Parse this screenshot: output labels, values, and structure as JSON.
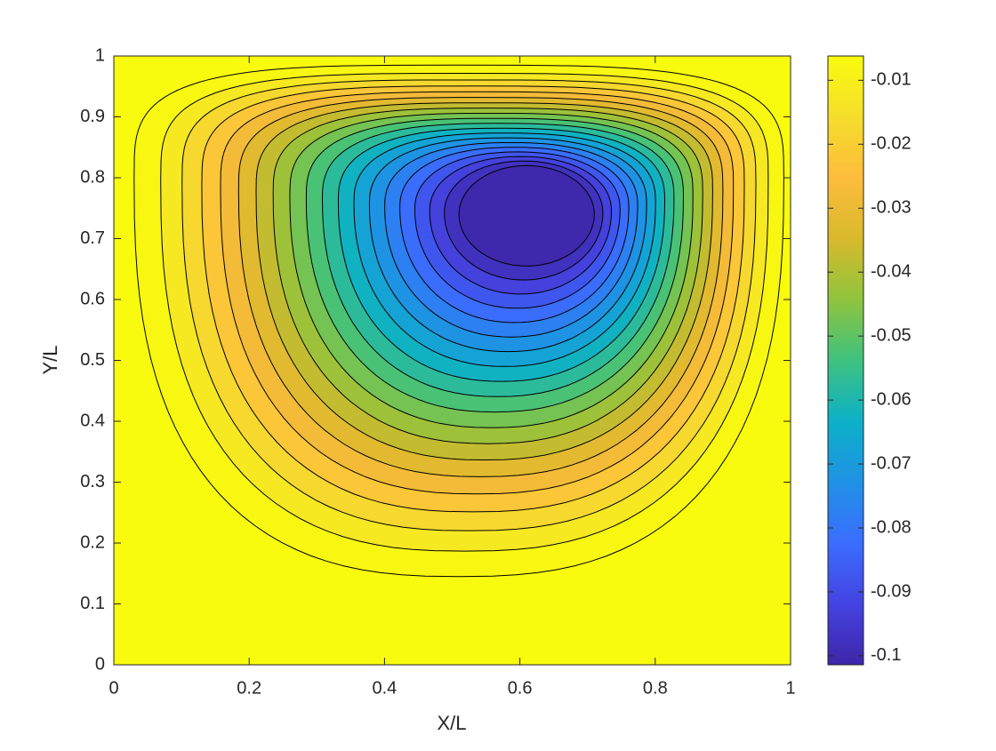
{
  "chart_data": {
    "type": "contour",
    "xlabel": "X/L",
    "ylabel": "Y/L",
    "xlim": [
      0,
      1
    ],
    "ylim": [
      0,
      1
    ],
    "xticks": [
      0,
      0.2,
      0.4,
      0.6,
      0.8,
      1
    ],
    "yticks": [
      0,
      0.1,
      0.2,
      0.3,
      0.4,
      0.5,
      0.6,
      0.7,
      0.8,
      0.9,
      1
    ],
    "levels": [
      -0.005,
      -0.01,
      -0.015,
      -0.02,
      -0.025,
      -0.03,
      -0.035,
      -0.04,
      -0.045,
      -0.05,
      -0.055,
      -0.06,
      -0.065,
      -0.07,
      -0.075,
      -0.08,
      -0.085,
      -0.09,
      -0.095,
      -0.1
    ],
    "clim": [
      -0.1014,
      -0.0062
    ],
    "cticks": [
      -0.1,
      -0.09,
      -0.08,
      -0.07,
      -0.06,
      -0.05,
      -0.04,
      -0.03,
      -0.02,
      -0.01
    ],
    "colormap": [
      "#3e26a8",
      "#4443e1",
      "#3a6dfe",
      "#1f92e4",
      "#0cb1c8",
      "#3ec27f",
      "#8fc43d",
      "#d8b92c",
      "#fdbc3c",
      "#f5de2b",
      "#f9fb0e"
    ],
    "line_color": "#000000"
  }
}
